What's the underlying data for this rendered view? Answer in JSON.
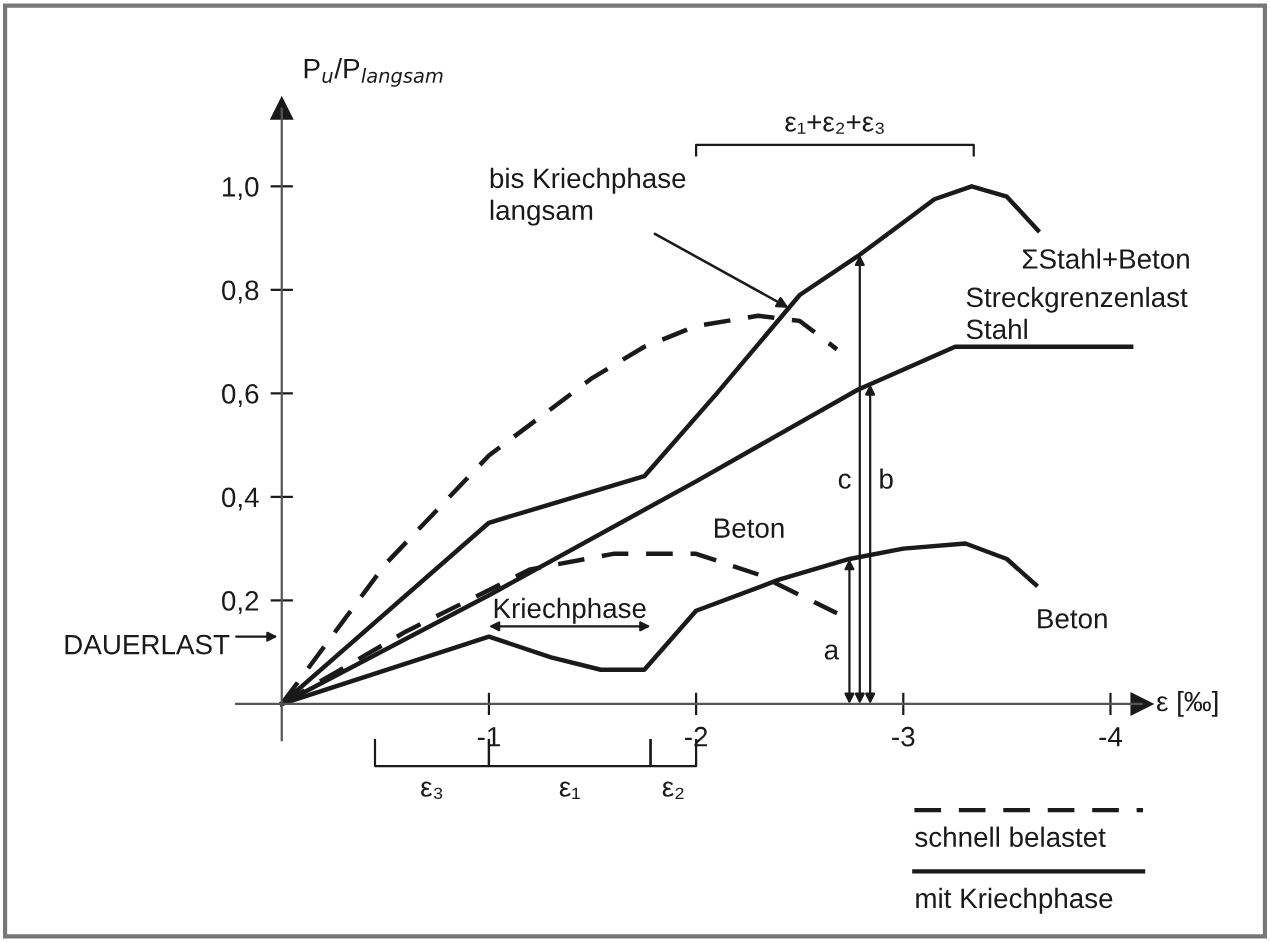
{
  "chart_data": {
    "type": "line",
    "xlabel": "ε [‰]",
    "ylabel": "P$_{u}$/P$_{langsam}$",
    "xlim": [
      1.36,
      -4.77
    ],
    "ylim": [
      -0.46,
      1.36
    ],
    "xticks": [
      -1,
      -2,
      -3,
      -4
    ],
    "yticks": [
      {
        "value": 0.2,
        "label": "0,2"
      },
      {
        "value": 0.4,
        "label": "0,4"
      },
      {
        "value": 0.6,
        "label": "0,6"
      },
      {
        "value": 0.8,
        "label": "0,8"
      },
      {
        "value": 1.0,
        "label": "1,0"
      }
    ],
    "grid": false,
    "series": [
      {
        "name": "ΣStahl+Beton",
        "color": "#1a1a1a",
        "line_style": "solid",
        "x": [
          0,
          -1,
          -1.75,
          -2.1,
          -2.5,
          -2.78,
          -3.0,
          -3.15,
          -3.33,
          -3.5,
          -3.65
        ],
        "values": [
          0,
          0.35,
          0.44,
          0.6,
          0.79,
          0.865,
          0.93,
          0.975,
          1.0,
          0.98,
          0.915
        ]
      },
      {
        "name": "Streckgrenzenlast\nStahl",
        "color": "#1a1a1a",
        "line_style": "solid",
        "x": [
          0,
          -1,
          -2,
          -2.78,
          -3.25,
          -4.1
        ],
        "values": [
          0,
          0.21,
          0.43,
          0.607,
          0.69,
          0.69
        ]
      },
      {
        "name": "Beton",
        "color": "#1a1a1a",
        "line_style": "solid",
        "x": [
          0,
          -1,
          -1.3,
          -1.54,
          -1.75,
          -2.0,
          -2.4,
          -2.74,
          -3.0,
          -3.3,
          -3.5,
          -3.64
        ],
        "values": [
          0,
          0.13,
          0.09,
          0.066,
          0.066,
          0.18,
          0.24,
          0.28,
          0.3,
          0.31,
          0.28,
          0.23
        ]
      },
      {
        "color": "#1a1a1a",
        "line_style": "dashed",
        "x": [
          0,
          -0.5,
          -1,
          -1.5,
          -1.75,
          -2.0,
          -2.3,
          -2.5,
          -2.68
        ],
        "values": [
          0,
          0.27,
          0.48,
          0.63,
          0.69,
          0.73,
          0.75,
          0.74,
          0.685
        ]
      },
      {
        "name": "Beton",
        "color": "#1a1a1a",
        "line_style": "dashed",
        "x": [
          0,
          -0.6,
          -1.2,
          -1.6,
          -2.0,
          -2.3,
          -2.68
        ],
        "values": [
          0,
          0.14,
          0.26,
          0.29,
          0.29,
          0.25,
          0.175
        ]
      }
    ],
    "annotations": [
      {
        "text": "bis Kriechphase\nlangsam",
        "x": -2.47,
        "y": 0.76
      },
      "Kriechphase",
      "DAUERLAST",
      "a",
      "c",
      "b",
      "ε₁+ε₂+ε₃",
      "ε₃",
      "ε₁",
      "ε₂",
      "schnell belastet",
      "mit Kriechphase"
    ]
  }
}
